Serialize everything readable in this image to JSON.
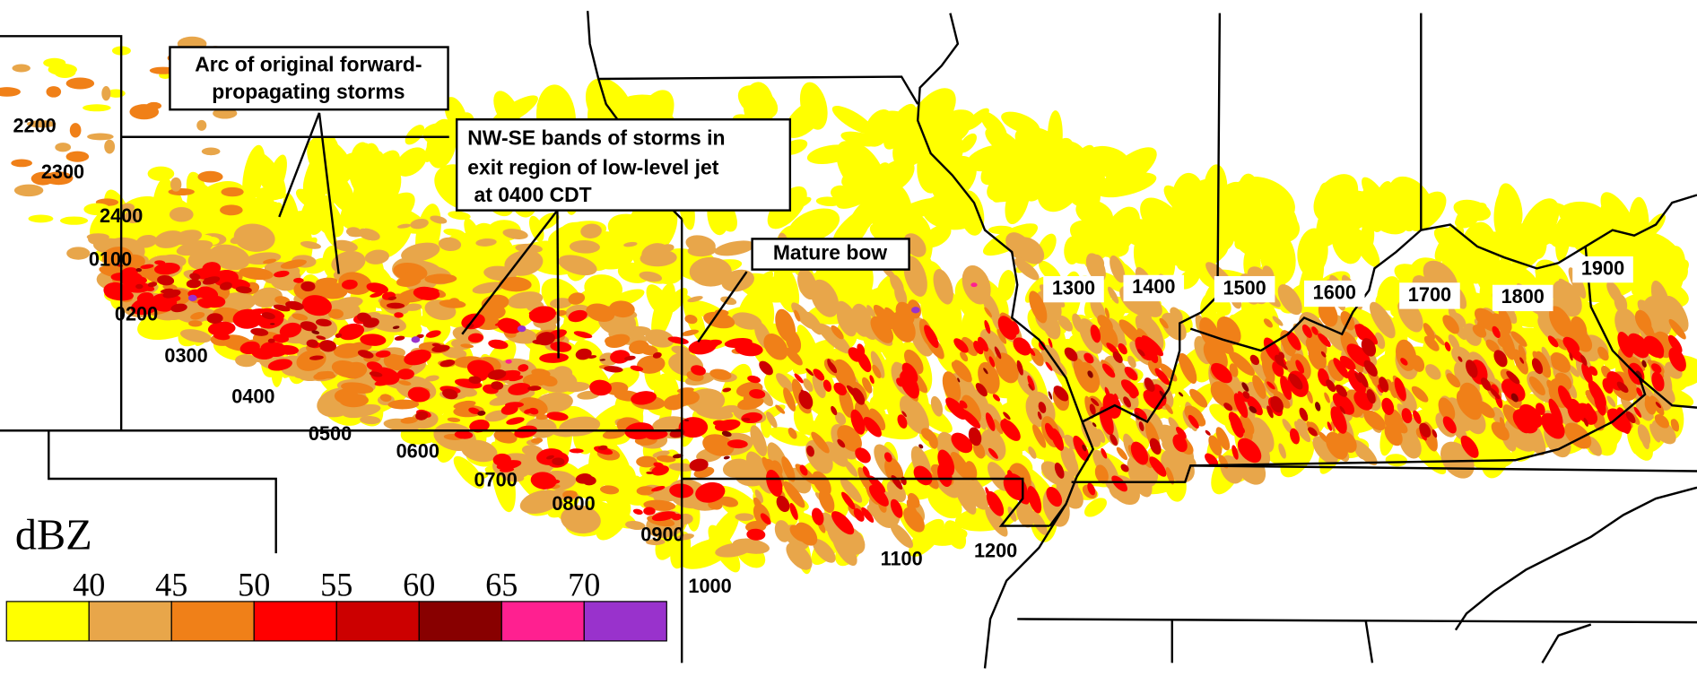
{
  "annotations": [
    {
      "lines": [
        "Arc of original forward-",
        "propagating storms"
      ]
    },
    {
      "lines": [
        "NW-SE bands of storms in",
        "exit region of low-level jet",
        "at 0400 CDT"
      ]
    },
    {
      "lines": [
        "Mature bow"
      ]
    }
  ],
  "time_labels": [
    "2200",
    "2300",
    "2400",
    "0100",
    "0200",
    "0300",
    "0400",
    "0500",
    "0600",
    "0700",
    "0800",
    "0900",
    "1000",
    "1100",
    "1200",
    "1300",
    "1400",
    "1500",
    "1600",
    "1700",
    "1800",
    "1900"
  ],
  "legend": {
    "title": "dBZ",
    "ticks": [
      40,
      45,
      50,
      55,
      60,
      65,
      70
    ],
    "colors": [
      "#ffff00",
      "#e8a64a",
      "#f08018",
      "#ff0000",
      "#cc0000",
      "#880000",
      "#ff2090",
      "#9932cc"
    ]
  }
}
